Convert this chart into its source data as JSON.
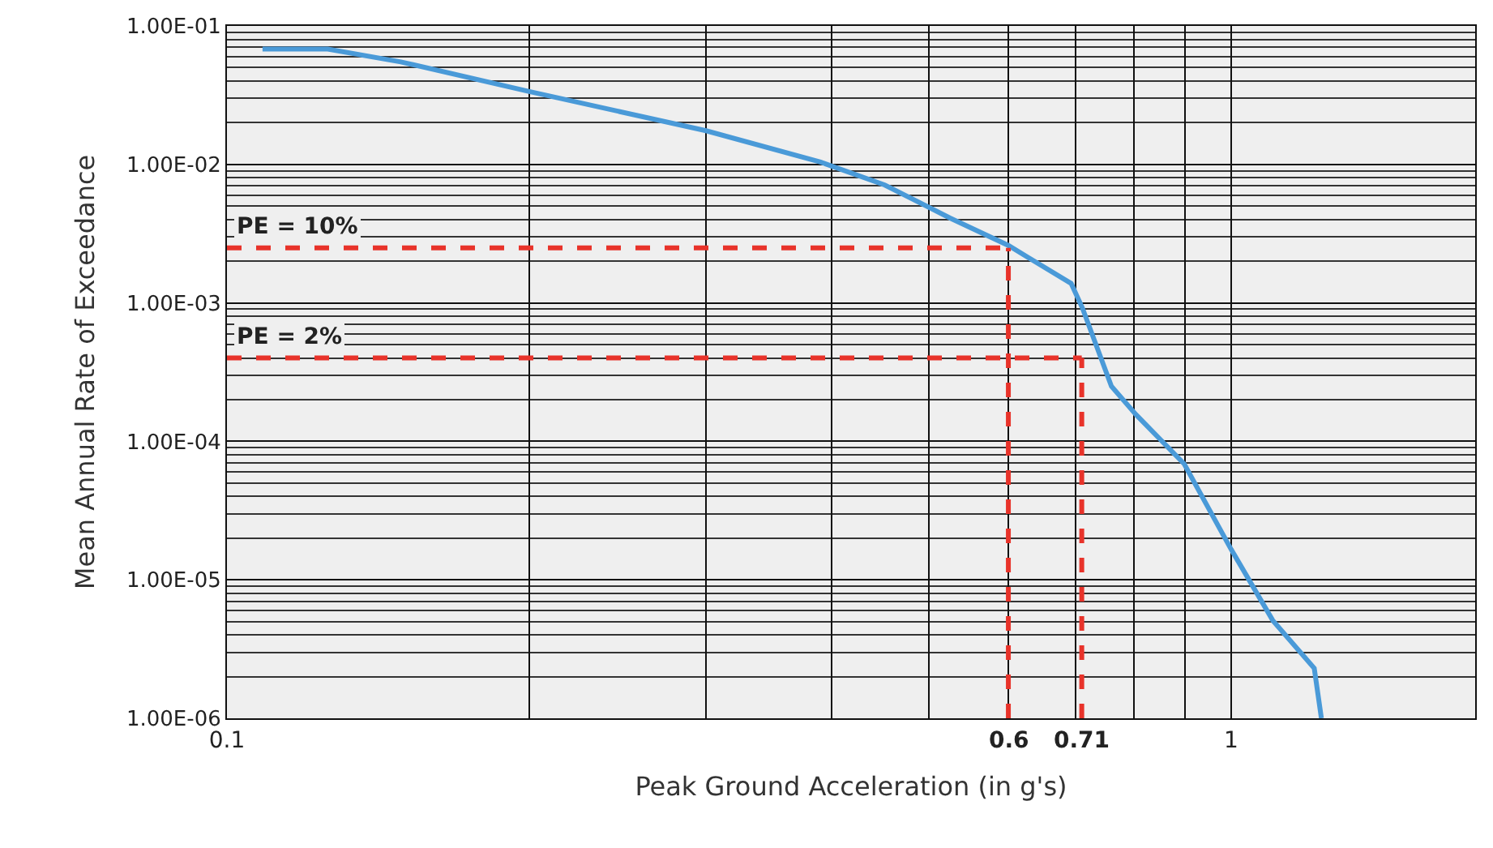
{
  "chart_data": {
    "type": "line",
    "xlabel": "Peak Ground Acceleration (in g's)",
    "ylabel": "Mean Annual Rate of Exceedance",
    "x": [
      0.1085,
      0.126,
      0.149,
      0.2,
      0.3,
      0.39,
      0.452,
      0.525,
      0.6,
      0.693,
      0.711,
      0.76,
      0.804,
      0.898,
      1.0,
      1.1,
      1.21,
      1.23
    ],
    "series": [
      {
        "color": "#4a9ad8",
        "values": [
          0.068,
          0.068,
          0.055,
          0.0336,
          0.0175,
          0.0104,
          0.0071,
          0.0041,
          0.0026,
          0.00138,
          0.00092,
          0.00025,
          0.000156,
          6.87e-05,
          1.66e-05,
          5.1e-06,
          2.3e-06,
          1e-06
        ]
      }
    ],
    "log": "xy",
    "grid": true,
    "marker": "none",
    "line_style": "solid",
    "xlim": [
      0.1,
      1.75
    ],
    "ylim": [
      1e-06,
      0.1
    ],
    "xticks": [
      0.1,
      {
        "value": 0.2,
        "label": null
      },
      {
        "value": 0.3,
        "label": null
      },
      {
        "value": 0.4,
        "label": null
      },
      {
        "value": 0.5,
        "label": null
      },
      {
        "value": 0.6,
        "label": null
      },
      {
        "value": 0.7,
        "label": null
      },
      {
        "value": 0.8,
        "label": null
      },
      {
        "value": 0.9,
        "label": null
      },
      1
    ],
    "yticks": [
      {
        "value": 1e-06,
        "label": "1.00E-06"
      },
      {
        "value": 1e-05,
        "label": "1.00E-05"
      },
      {
        "value": 0.0001,
        "label": "1.00E-04"
      },
      {
        "value": 0.001,
        "label": "1.00E-03"
      },
      {
        "value": 0.01,
        "label": "1.00E-02"
      },
      {
        "value": 0.1,
        "label": "1.00E-01"
      }
    ],
    "annotations": [
      {
        "text": "PE = 10%",
        "x": 0.1,
        "y": 0.0025
      },
      {
        "text": "PE = 2%",
        "x": 0.1,
        "y": 0.0004
      }
    ],
    "ref_lines": [
      {
        "axis": "y",
        "value": 0.0025,
        "color": "#e8332a",
        "line_style": "dashed"
      },
      {
        "axis": "y",
        "value": 0.0004,
        "color": "#e8332a",
        "line_style": "dashed"
      },
      {
        "axis": "x",
        "value": 0.6,
        "label": "0.6",
        "color": "#e8332a",
        "line_style": "dashed"
      },
      {
        "axis": "x",
        "value": 0.71,
        "label": "0.71",
        "color": "#e8332a",
        "line_style": "dashed"
      }
    ]
  }
}
